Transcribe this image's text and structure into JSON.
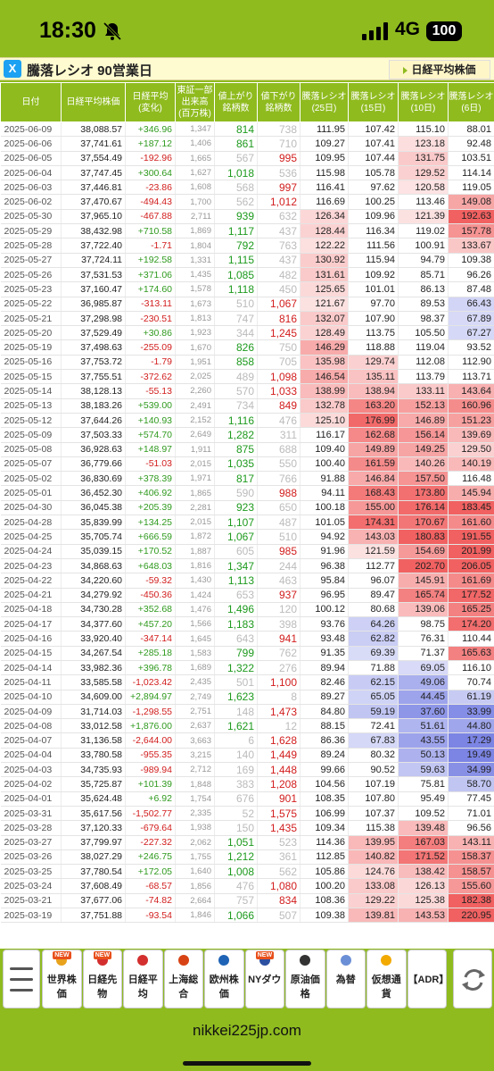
{
  "status": {
    "time": "18:30",
    "network": "4G",
    "battery": "100"
  },
  "header": {
    "title": "騰落レシオ 90営業日",
    "x_icon": "X",
    "nikkei_link": "日経平均株価"
  },
  "table": {
    "columns": [
      "日付",
      "日経平均株価",
      "日経平均\n(変化)",
      "東証一部\n出来高\n(百万株)",
      "値上がり\n銘柄数",
      "値下がり\n銘柄数",
      "騰落レシオ\n(25日)",
      "騰落レシオ\n(15日)",
      "騰落レシオ\n(10日)",
      "騰落レシオ\n(6日)"
    ],
    "rows": [
      [
        "2025-06-09",
        "38,088.57",
        "+346.96",
        "1,347",
        "814",
        "738",
        "111.95",
        "107.42",
        "115.10",
        "88.01"
      ],
      [
        "2025-06-06",
        "37,741.61",
        "+187.12",
        "1,406",
        "861",
        "710",
        "109.27",
        "107.41",
        "123.18",
        "92.48"
      ],
      [
        "2025-06-05",
        "37,554.49",
        "-192.96",
        "1,665",
        "567",
        "995",
        "109.95",
        "107.44",
        "131.75",
        "103.51"
      ],
      [
        "2025-06-04",
        "37,747.45",
        "+300.64",
        "1,627",
        "1,018",
        "536",
        "115.98",
        "105.78",
        "129.52",
        "114.14"
      ],
      [
        "2025-06-03",
        "37,446.81",
        "-23.86",
        "1,608",
        "568",
        "997",
        "116.41",
        "97.62",
        "120.58",
        "119.05"
      ],
      [
        "2025-06-02",
        "37,470.67",
        "-494.43",
        "1,700",
        "562",
        "1,012",
        "116.69",
        "100.25",
        "113.46",
        "149.08"
      ],
      [
        "2025-05-30",
        "37,965.10",
        "-467.88",
        "2,711",
        "939",
        "632",
        "126.34",
        "109.96",
        "121.39",
        "192.63"
      ],
      [
        "2025-05-29",
        "38,432.98",
        "+710.58",
        "1,869",
        "1,117",
        "437",
        "128.44",
        "116.34",
        "119.02",
        "157.78"
      ],
      [
        "2025-05-28",
        "37,722.40",
        "-1.71",
        "1,804",
        "792",
        "763",
        "122.22",
        "111.56",
        "100.91",
        "133.67"
      ],
      [
        "2025-05-27",
        "37,724.11",
        "+192.58",
        "1,331",
        "1,115",
        "437",
        "130.92",
        "115.94",
        "94.79",
        "109.38"
      ],
      [
        "2025-05-26",
        "37,531.53",
        "+371.06",
        "1,435",
        "1,085",
        "482",
        "131.61",
        "109.92",
        "85.71",
        "96.26"
      ],
      [
        "2025-05-23",
        "37,160.47",
        "+174.60",
        "1,578",
        "1,118",
        "450",
        "125.65",
        "101.01",
        "86.13",
        "87.48"
      ],
      [
        "2025-05-22",
        "36,985.87",
        "-313.11",
        "1,673",
        "510",
        "1,067",
        "121.67",
        "97.70",
        "89.53",
        "66.43"
      ],
      [
        "2025-05-21",
        "37,298.98",
        "-230.51",
        "1,813",
        "747",
        "816",
        "132.07",
        "107.90",
        "98.37",
        "67.89"
      ],
      [
        "2025-05-20",
        "37,529.49",
        "+30.86",
        "1,923",
        "344",
        "1,245",
        "128.49",
        "113.75",
        "105.50",
        "67.27"
      ],
      [
        "2025-05-19",
        "37,498.63",
        "-255.09",
        "1,670",
        "826",
        "750",
        "146.29",
        "118.88",
        "119.04",
        "93.52"
      ],
      [
        "2025-05-16",
        "37,753.72",
        "-1.79",
        "1,951",
        "858",
        "705",
        "135.98",
        "129.74",
        "112.08",
        "112.90"
      ],
      [
        "2025-05-15",
        "37,755.51",
        "-372.62",
        "2,025",
        "489",
        "1,098",
        "146.54",
        "135.11",
        "113.79",
        "113.71"
      ],
      [
        "2025-05-14",
        "38,128.13",
        "-55.13",
        "2,260",
        "570",
        "1,033",
        "138.99",
        "138.94",
        "133.11",
        "143.64"
      ],
      [
        "2025-05-13",
        "38,183.26",
        "+539.00",
        "2,491",
        "734",
        "849",
        "132.78",
        "163.20",
        "152.13",
        "160.96"
      ],
      [
        "2025-05-12",
        "37,644.26",
        "+140.93",
        "2,152",
        "1,116",
        "476",
        "125.10",
        "176.99",
        "146.89",
        "151.23"
      ],
      [
        "2025-05-09",
        "37,503.33",
        "+574.70",
        "2,649",
        "1,282",
        "311",
        "116.17",
        "162.68",
        "156.14",
        "139.69"
      ],
      [
        "2025-05-08",
        "36,928.63",
        "+148.97",
        "1,911",
        "875",
        "688",
        "109.40",
        "149.89",
        "149.25",
        "129.50"
      ],
      [
        "2025-05-07",
        "36,779.66",
        "-51.03",
        "2,015",
        "1,035",
        "550",
        "100.40",
        "161.59",
        "140.26",
        "140.19"
      ],
      [
        "2025-05-02",
        "36,830.69",
        "+378.39",
        "1,971",
        "817",
        "766",
        "91.88",
        "146.84",
        "157.50",
        "116.48"
      ],
      [
        "2025-05-01",
        "36,452.30",
        "+406.92",
        "1,865",
        "590",
        "988",
        "94.11",
        "168.43",
        "173.80",
        "145.94"
      ],
      [
        "2025-04-30",
        "36,045.38",
        "+205.39",
        "2,281",
        "923",
        "650",
        "100.18",
        "155.00",
        "176.14",
        "183.45"
      ],
      [
        "2025-04-28",
        "35,839.99",
        "+134.25",
        "2,015",
        "1,107",
        "487",
        "101.05",
        "174.31",
        "170.67",
        "161.60"
      ],
      [
        "2025-04-25",
        "35,705.74",
        "+666.59",
        "1,872",
        "1,067",
        "510",
        "94.92",
        "143.03",
        "180.83",
        "191.55"
      ],
      [
        "2025-04-24",
        "35,039.15",
        "+170.52",
        "1,887",
        "605",
        "985",
        "91.96",
        "121.59",
        "154.69",
        "201.99"
      ],
      [
        "2025-04-23",
        "34,868.63",
        "+648.03",
        "1,816",
        "1,347",
        "244",
        "96.38",
        "112.77",
        "202.70",
        "206.05"
      ],
      [
        "2025-04-22",
        "34,220.60",
        "-59.32",
        "1,430",
        "1,113",
        "463",
        "95.84",
        "96.07",
        "145.91",
        "161.69"
      ],
      [
        "2025-04-21",
        "34,279.92",
        "-450.36",
        "1,424",
        "653",
        "937",
        "96.95",
        "89.47",
        "165.74",
        "177.52"
      ],
      [
        "2025-04-18",
        "34,730.28",
        "+352.68",
        "1,476",
        "1,496",
        "120",
        "100.12",
        "80.68",
        "139.06",
        "165.25"
      ],
      [
        "2025-04-17",
        "34,377.60",
        "+457.20",
        "1,566",
        "1,183",
        "398",
        "93.76",
        "64.26",
        "98.75",
        "174.20"
      ],
      [
        "2025-04-16",
        "33,920.40",
        "-347.14",
        "1,645",
        "643",
        "941",
        "93.48",
        "62.82",
        "76.31",
        "110.44"
      ],
      [
        "2025-04-15",
        "34,267.54",
        "+285.18",
        "1,583",
        "799",
        "762",
        "91.35",
        "69.39",
        "71.37",
        "165.63"
      ],
      [
        "2025-04-14",
        "33,982.36",
        "+396.78",
        "1,689",
        "1,322",
        "276",
        "89.94",
        "71.88",
        "69.05",
        "116.10"
      ],
      [
        "2025-04-11",
        "33,585.58",
        "-1,023.42",
        "2,435",
        "501",
        "1,100",
        "82.46",
        "62.15",
        "49.06",
        "70.74"
      ],
      [
        "2025-04-10",
        "34,609.00",
        "+2,894.97",
        "2,749",
        "1,623",
        "8",
        "89.27",
        "65.05",
        "44.45",
        "61.19"
      ],
      [
        "2025-04-09",
        "31,714.03",
        "-1,298.55",
        "2,751",
        "148",
        "1,473",
        "84.80",
        "59.19",
        "37.60",
        "33.99"
      ],
      [
        "2025-04-08",
        "33,012.58",
        "+1,876.00",
        "2,637",
        "1,621",
        "12",
        "88.15",
        "72.41",
        "51.61",
        "44.80"
      ],
      [
        "2025-04-07",
        "31,136.58",
        "-2,644.00",
        "3,663",
        "6",
        "1,628",
        "86.36",
        "67.83",
        "43.55",
        "17.29"
      ],
      [
        "2025-04-04",
        "33,780.58",
        "-955.35",
        "3,215",
        "140",
        "1,449",
        "89.24",
        "80.32",
        "50.13",
        "19.49"
      ],
      [
        "2025-04-03",
        "34,735.93",
        "-989.94",
        "2,712",
        "169",
        "1,448",
        "99.66",
        "90.52",
        "59.63",
        "34.99"
      ],
      [
        "2025-04-02",
        "35,725.87",
        "+101.39",
        "1,848",
        "383",
        "1,208",
        "104.56",
        "107.19",
        "75.81",
        "58.70"
      ],
      [
        "2025-04-01",
        "35,624.48",
        "+6.92",
        "1,754",
        "676",
        "901",
        "108.35",
        "107.80",
        "95.49",
        "77.45"
      ],
      [
        "2025-03-31",
        "35,617.56",
        "-1,502.77",
        "2,335",
        "52",
        "1,575",
        "106.99",
        "107.37",
        "109.52",
        "71.01"
      ],
      [
        "2025-03-28",
        "37,120.33",
        "-679.64",
        "1,938",
        "150",
        "1,435",
        "109.34",
        "115.38",
        "139.48",
        "96.56"
      ],
      [
        "2025-03-27",
        "37,799.97",
        "-227.32",
        "2,062",
        "1,051",
        "523",
        "114.36",
        "139.95",
        "167.03",
        "143.11"
      ],
      [
        "2025-03-26",
        "38,027.29",
        "+246.75",
        "1,755",
        "1,212",
        "361",
        "112.85",
        "140.82",
        "171.52",
        "158.37"
      ],
      [
        "2025-03-25",
        "37,780.54",
        "+172.05",
        "1,640",
        "1,008",
        "562",
        "105.86",
        "124.76",
        "138.42",
        "158.57"
      ],
      [
        "2025-03-24",
        "37,608.49",
        "-68.57",
        "1,856",
        "476",
        "1,080",
        "100.20",
        "133.08",
        "126.13",
        "155.60"
      ],
      [
        "2025-03-21",
        "37,677.06",
        "-74.82",
        "2,664",
        "757",
        "834",
        "108.36",
        "129.22",
        "125.38",
        "182.38"
      ],
      [
        "2025-03-19",
        "37,751.88",
        "-93.54",
        "1,846",
        "1,066",
        "507",
        "109.38",
        "139.81",
        "143.53",
        "220.95"
      ]
    ]
  },
  "nav": {
    "items": [
      {
        "label": "世界株価",
        "new": "NEW",
        "icon_color": "#e8a21c"
      },
      {
        "label": "日経先物",
        "new": "NEW",
        "icon_color": "#d32f2f"
      },
      {
        "label": "日経平均",
        "new": "",
        "icon_color": "#d32f2f"
      },
      {
        "label": "上海総合",
        "new": "",
        "icon_color": "#d84315"
      },
      {
        "label": "欧州株価",
        "new": "",
        "icon_color": "#1e63b5"
      },
      {
        "label": "NYダウ",
        "new": "NEW",
        "icon_color": "#2c4fa0"
      },
      {
        "label": "原油価格",
        "new": "",
        "icon_color": "#333333"
      },
      {
        "label": "為替",
        "new": "",
        "icon_color": "#6b8fd6"
      },
      {
        "label": "仮想通貨",
        "new": "",
        "icon_color": "#f2a900"
      },
      {
        "label": "【ADR】",
        "new": "",
        "icon_color": ""
      }
    ]
  },
  "footer": {
    "url": "nikkei225jp.com"
  }
}
